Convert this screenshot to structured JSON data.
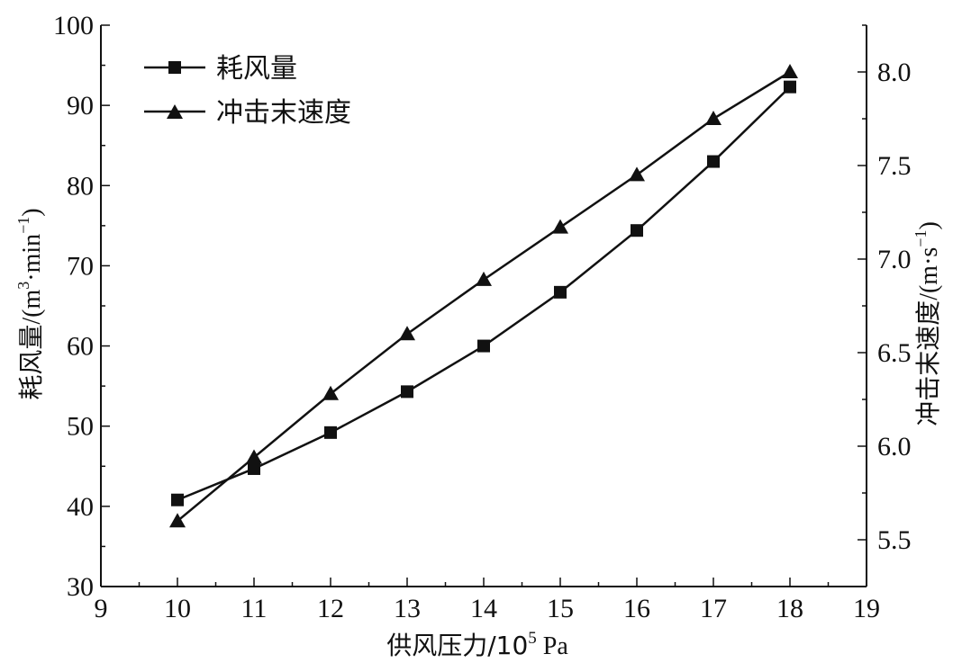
{
  "chart_data": {
    "type": "line",
    "x": [
      10,
      11,
      12,
      13,
      14,
      15,
      16,
      17,
      18
    ],
    "series": [
      {
        "name": "耗风量",
        "axis": "left",
        "marker": "square",
        "values": [
          40.8,
          44.7,
          49.2,
          54.3,
          60.0,
          66.7,
          74.4,
          83.0,
          92.3
        ]
      },
      {
        "name": "冲击末速度",
        "axis": "right",
        "marker": "triangle",
        "values": [
          5.6,
          5.94,
          6.28,
          6.6,
          6.89,
          7.17,
          7.45,
          7.75,
          8.0
        ]
      }
    ],
    "xlabel": "供风压力/10⁵ Pa",
    "xlabel_parts": {
      "main": "供风压力/10",
      "sup": "5",
      "tail": " Pa"
    },
    "ylabel": "耗风量/(m³·min⁻¹)",
    "ylabel_parts": {
      "main": "耗风量",
      "pre": "/(m",
      "sup1": "3",
      "mid": "·min",
      "sup2": "−1",
      "post": ")"
    },
    "y2label": "冲击末速度/(m·s⁻¹)",
    "y2label_parts": {
      "main": "冲击末速度",
      "pre": "/(m·s",
      "sup": "−1",
      "post": ")"
    },
    "xlim": [
      9,
      19
    ],
    "ylim": [
      30,
      100
    ],
    "y2lim": [
      5.25,
      8.25
    ],
    "xticks": [
      "9",
      "10",
      "11",
      "12",
      "13",
      "14",
      "15",
      "16",
      "17",
      "18",
      "19"
    ],
    "yticks": [
      "30",
      "40",
      "50",
      "60",
      "70",
      "80",
      "90",
      "100"
    ],
    "y2ticks": [
      "5.5",
      "6.0",
      "6.5",
      "7.0",
      "7.5",
      "8.0"
    ],
    "legend": {
      "position": "top-left"
    },
    "grid": false,
    "colors": {
      "line": "#111111",
      "background": "#ffffff"
    }
  }
}
